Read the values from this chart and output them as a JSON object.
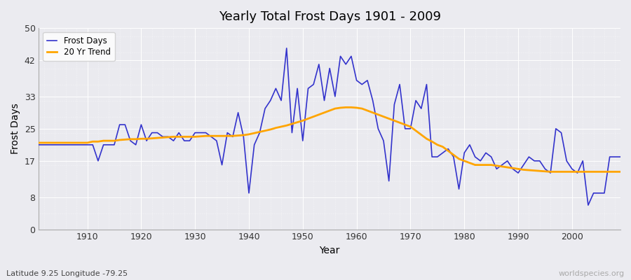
{
  "title": "Yearly Total Frost Days 1901 - 2009",
  "xlabel": "Year",
  "ylabel": "Frost Days",
  "subtitle": "Latitude 9.25 Longitude -79.25",
  "watermark": "worldspecies.org",
  "ylim": [
    0,
    50
  ],
  "yticks": [
    0,
    8,
    17,
    25,
    33,
    42,
    50
  ],
  "frost_days": [
    21,
    21,
    21,
    21,
    21,
    21,
    21,
    21,
    21,
    21,
    21,
    17,
    21,
    21,
    21,
    26,
    26,
    22,
    21,
    26,
    22,
    24,
    24,
    23,
    23,
    22,
    24,
    22,
    22,
    24,
    24,
    24,
    23,
    22,
    16,
    24,
    23,
    29,
    23,
    9,
    21,
    24,
    30,
    32,
    35,
    32,
    45,
    24,
    35,
    22,
    35,
    36,
    41,
    32,
    40,
    33,
    43,
    41,
    43,
    37,
    36,
    37,
    32,
    25,
    22,
    12,
    31,
    36,
    25,
    25,
    32,
    30,
    36,
    18,
    18,
    19,
    20,
    18,
    10,
    19,
    21,
    18,
    17,
    19,
    18,
    15,
    16,
    17,
    15,
    14,
    16,
    18,
    17,
    17,
    15,
    14,
    25,
    24,
    17,
    15,
    14,
    17,
    6,
    9,
    9,
    9,
    18,
    18,
    18
  ],
  "trend_years": [
    1901,
    1902,
    1903,
    1904,
    1905,
    1906,
    1907,
    1908,
    1909,
    1910,
    1911,
    1912,
    1913,
    1914,
    1915,
    1916,
    1917,
    1918,
    1919,
    1920,
    1921,
    1922,
    1923,
    1924,
    1925,
    1926,
    1927,
    1928,
    1929,
    1930,
    1931,
    1932,
    1933,
    1934,
    1935,
    1936,
    1937,
    1938,
    1939,
    1940,
    1941,
    1942,
    1943,
    1944,
    1945,
    1946,
    1947,
    1948,
    1949,
    1950,
    1951,
    1952,
    1953,
    1954,
    1955,
    1956,
    1957,
    1958,
    1959,
    1960,
    1961,
    1962,
    1963,
    1964,
    1965,
    1966,
    1967,
    1968,
    1969,
    1970,
    1971,
    1972,
    1973,
    1974,
    1975,
    1976,
    1977,
    1978,
    1979,
    1980,
    1981,
    1982,
    1983,
    1984,
    1985,
    1986,
    1987,
    1988,
    1989,
    1990,
    1991,
    1992,
    1993,
    1994,
    1995,
    1996,
    1997,
    1998,
    1999,
    2000,
    2001,
    2002,
    2003,
    2004,
    2005,
    2006,
    2007,
    2008,
    2009
  ],
  "trend_values": [
    21.5,
    21.5,
    21.5,
    21.5,
    21.5,
    21.5,
    21.5,
    21.5,
    21.5,
    21.5,
    21.8,
    21.8,
    22.0,
    22.0,
    22.0,
    22.2,
    22.3,
    22.4,
    22.4,
    22.5,
    22.5,
    22.6,
    22.7,
    22.8,
    22.9,
    23.0,
    23.0,
    23.0,
    23.0,
    23.0,
    23.1,
    23.2,
    23.2,
    23.2,
    23.2,
    23.2,
    23.2,
    23.3,
    23.4,
    23.6,
    23.9,
    24.2,
    24.5,
    24.8,
    25.2,
    25.5,
    25.8,
    26.2,
    26.6,
    27.0,
    27.5,
    28.0,
    28.5,
    29.0,
    29.5,
    30.0,
    30.2,
    30.3,
    30.3,
    30.2,
    30.0,
    29.5,
    29.0,
    28.5,
    28.0,
    27.5,
    27.0,
    26.5,
    26.0,
    25.5,
    24.5,
    23.5,
    22.5,
    21.8,
    21.0,
    20.5,
    19.5,
    18.5,
    17.5,
    17.0,
    16.5,
    16.0,
    16.0,
    16.0,
    16.0,
    15.8,
    15.6,
    15.4,
    15.2,
    15.0,
    14.8,
    14.7,
    14.6,
    14.5,
    14.4,
    14.3,
    14.3,
    14.3,
    14.3,
    14.3,
    14.3,
    14.3,
    14.3,
    14.3,
    14.3,
    14.3,
    14.3,
    14.3,
    14.3
  ],
  "line_color": "#3333cc",
  "trend_color": "#FFA500",
  "bg_color": "#ebebf0",
  "plot_bg": "#eaeaef",
  "legend_bg": "#ffffff",
  "grid_color": "#ffffff"
}
